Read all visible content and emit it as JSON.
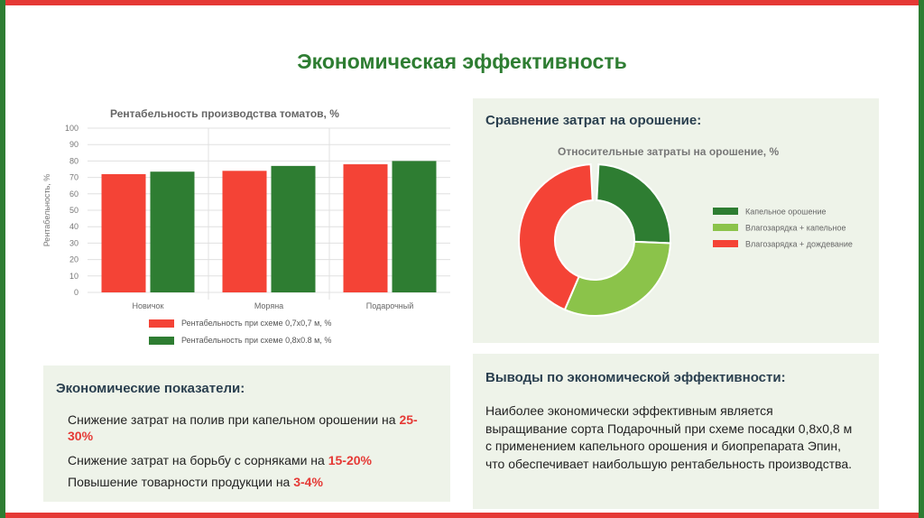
{
  "page": {
    "title": "Экономическая эффективность",
    "border_green": "#2e7d32",
    "border_red": "#e53935"
  },
  "chart_data": [
    {
      "type": "bar",
      "title": "Рентабельность производства томатов, %",
      "ylabel": "Рентабельность, %",
      "xlabel": "",
      "categories": [
        "Новичок",
        "Моряна",
        "Подарочный"
      ],
      "ylim": [
        0,
        100
      ],
      "yticks": [
        0,
        10,
        20,
        30,
        40,
        50,
        60,
        70,
        80,
        90,
        100
      ],
      "grid": true,
      "legend_position": "bottom",
      "series": [
        {
          "name": "Рентабельность при схеме 0,7х0,7 м, %",
          "color": "#f44336",
          "values": [
            72,
            74,
            78
          ]
        },
        {
          "name": "Рентабельность при схеме 0,8х0.8 м, %",
          "color": "#2e7d32",
          "values": [
            73.5,
            77,
            80
          ]
        }
      ]
    },
    {
      "type": "pie",
      "title": "Относительные затраты на орошение, %",
      "legend_position": "right",
      "slices": [
        {
          "name": "Капельное орошение",
          "color": "#2e7d32",
          "value": 25
        },
        {
          "name": "Влагозарядка + капельное",
          "color": "#8bc34a",
          "value": 31
        },
        {
          "name": "Влагозарядка + дождевание",
          "color": "#f44336",
          "value": 43
        }
      ]
    }
  ],
  "panels": {
    "irrigation_heading": "Сравнение затрат на орошение:",
    "metrics_heading": "Экономические показатели:",
    "conclusions_heading": "Выводы по экономической эффективности:"
  },
  "metrics": [
    {
      "text": "Снижение затрат на полив при капельном орошении на ",
      "value": "25-30%"
    },
    {
      "text": "Снижение затрат на борьбу с сорняками на ",
      "value": "15-20%"
    },
    {
      "text": "Повышение товарности продукции на ",
      "value": "3-4%"
    }
  ],
  "conclusion_text": "Наиболее экономически эффективным является выращивание сорта Подарочный при схеме посадки 0,8х0,8 м с применением капельного орошения и биопрепарата Эпин, что обеспечивает наибольшую рентабельность производства."
}
